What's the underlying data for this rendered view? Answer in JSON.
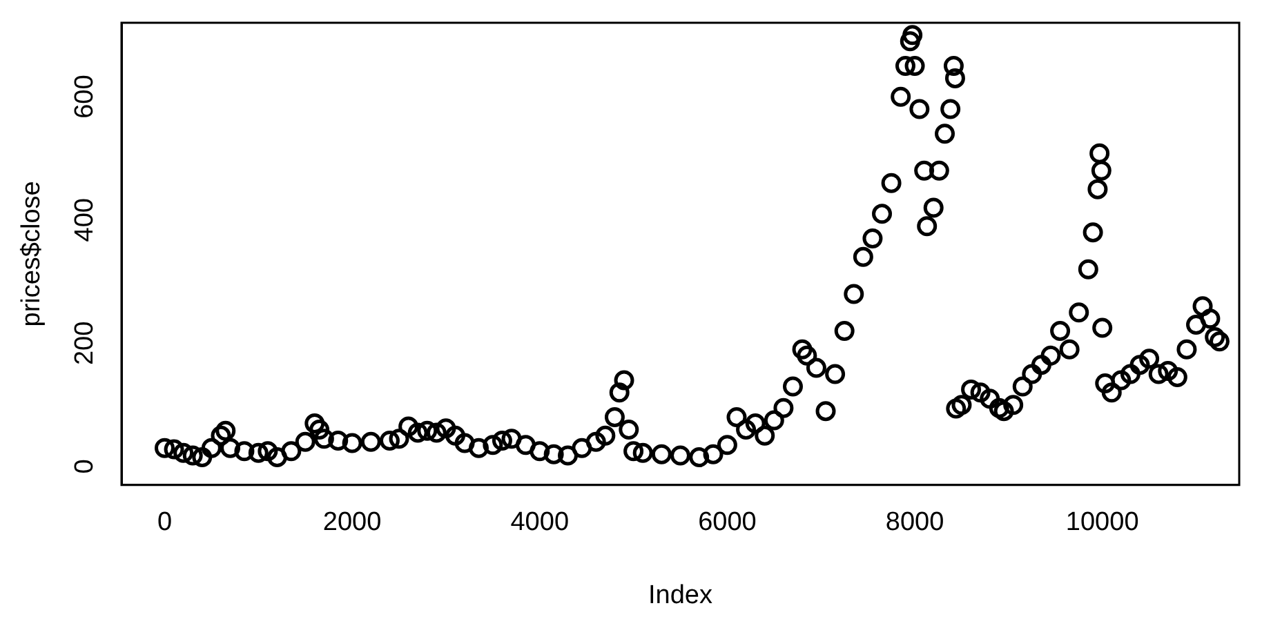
{
  "chart_data": {
    "type": "scatter",
    "xlabel": "Index",
    "ylabel": "prices$close",
    "marker": "circle",
    "grid": false,
    "legend": false,
    "xlim": [
      -460,
      11460
    ],
    "xticks": [
      0,
      2000,
      4000,
      6000,
      8000,
      10000
    ],
    "ylim": [
      -30,
      720
    ],
    "yticks": [
      0,
      200,
      400,
      600
    ],
    "series": [
      {
        "color": "#000000",
        "x": [
          0,
          100,
          200,
          300,
          400,
          500,
          600,
          650,
          700,
          850,
          1000,
          1100,
          1200,
          1350,
          1500,
          1600,
          1650,
          1700,
          1850,
          2000,
          2200,
          2400,
          2500,
          2600,
          2700,
          2800,
          2900,
          3000,
          3100,
          3200,
          3350,
          3500,
          3600,
          3700,
          3850,
          4000,
          4150,
          4300,
          4450,
          4600,
          4700,
          4800,
          4850,
          4900,
          4950,
          5000,
          5100,
          5300,
          5500,
          5700,
          5850,
          6000,
          6100,
          6200,
          6300,
          6400,
          6500,
          6600,
          6700,
          6800,
          6850,
          6950,
          7050,
          7150,
          7250,
          7350,
          7450,
          7550,
          7650,
          7750,
          7850,
          7900,
          7950,
          7975,
          8000,
          8050,
          8100,
          8130,
          8200,
          8260,
          8320,
          8380,
          8415,
          8430,
          8440,
          8500,
          8600,
          8700,
          8800,
          8900,
          8950,
          9050,
          9150,
          9250,
          9350,
          9450,
          9550,
          9650,
          9750,
          9850,
          9900,
          9950,
          9970,
          9990,
          10000,
          10030,
          10100,
          10200,
          10300,
          10400,
          10500,
          10600,
          10700,
          10800,
          10900,
          11000,
          11070,
          11150,
          11200,
          11250
        ],
        "values": [
          30,
          28,
          22,
          18,
          15,
          30,
          50,
          58,
          30,
          25,
          22,
          25,
          15,
          25,
          40,
          70,
          60,
          45,
          42,
          38,
          40,
          42,
          45,
          65,
          55,
          58,
          55,
          62,
          50,
          38,
          30,
          35,
          42,
          45,
          35,
          25,
          20,
          18,
          30,
          40,
          50,
          80,
          120,
          140,
          60,
          25,
          22,
          20,
          18,
          15,
          20,
          35,
          80,
          60,
          70,
          50,
          75,
          95,
          130,
          190,
          180,
          160,
          90,
          150,
          220,
          280,
          340,
          370,
          410,
          460,
          600,
          650,
          690,
          700,
          650,
          580,
          480,
          390,
          420,
          480,
          540,
          580,
          650,
          630,
          94,
          100,
          125,
          120,
          110,
          95,
          90,
          100,
          130,
          150,
          165,
          180,
          220,
          190,
          250,
          320,
          380,
          450,
          508,
          480,
          225,
          135,
          120,
          140,
          150,
          165,
          175,
          150,
          155,
          145,
          190,
          230,
          260,
          240,
          210,
          203
        ]
      }
    ]
  }
}
